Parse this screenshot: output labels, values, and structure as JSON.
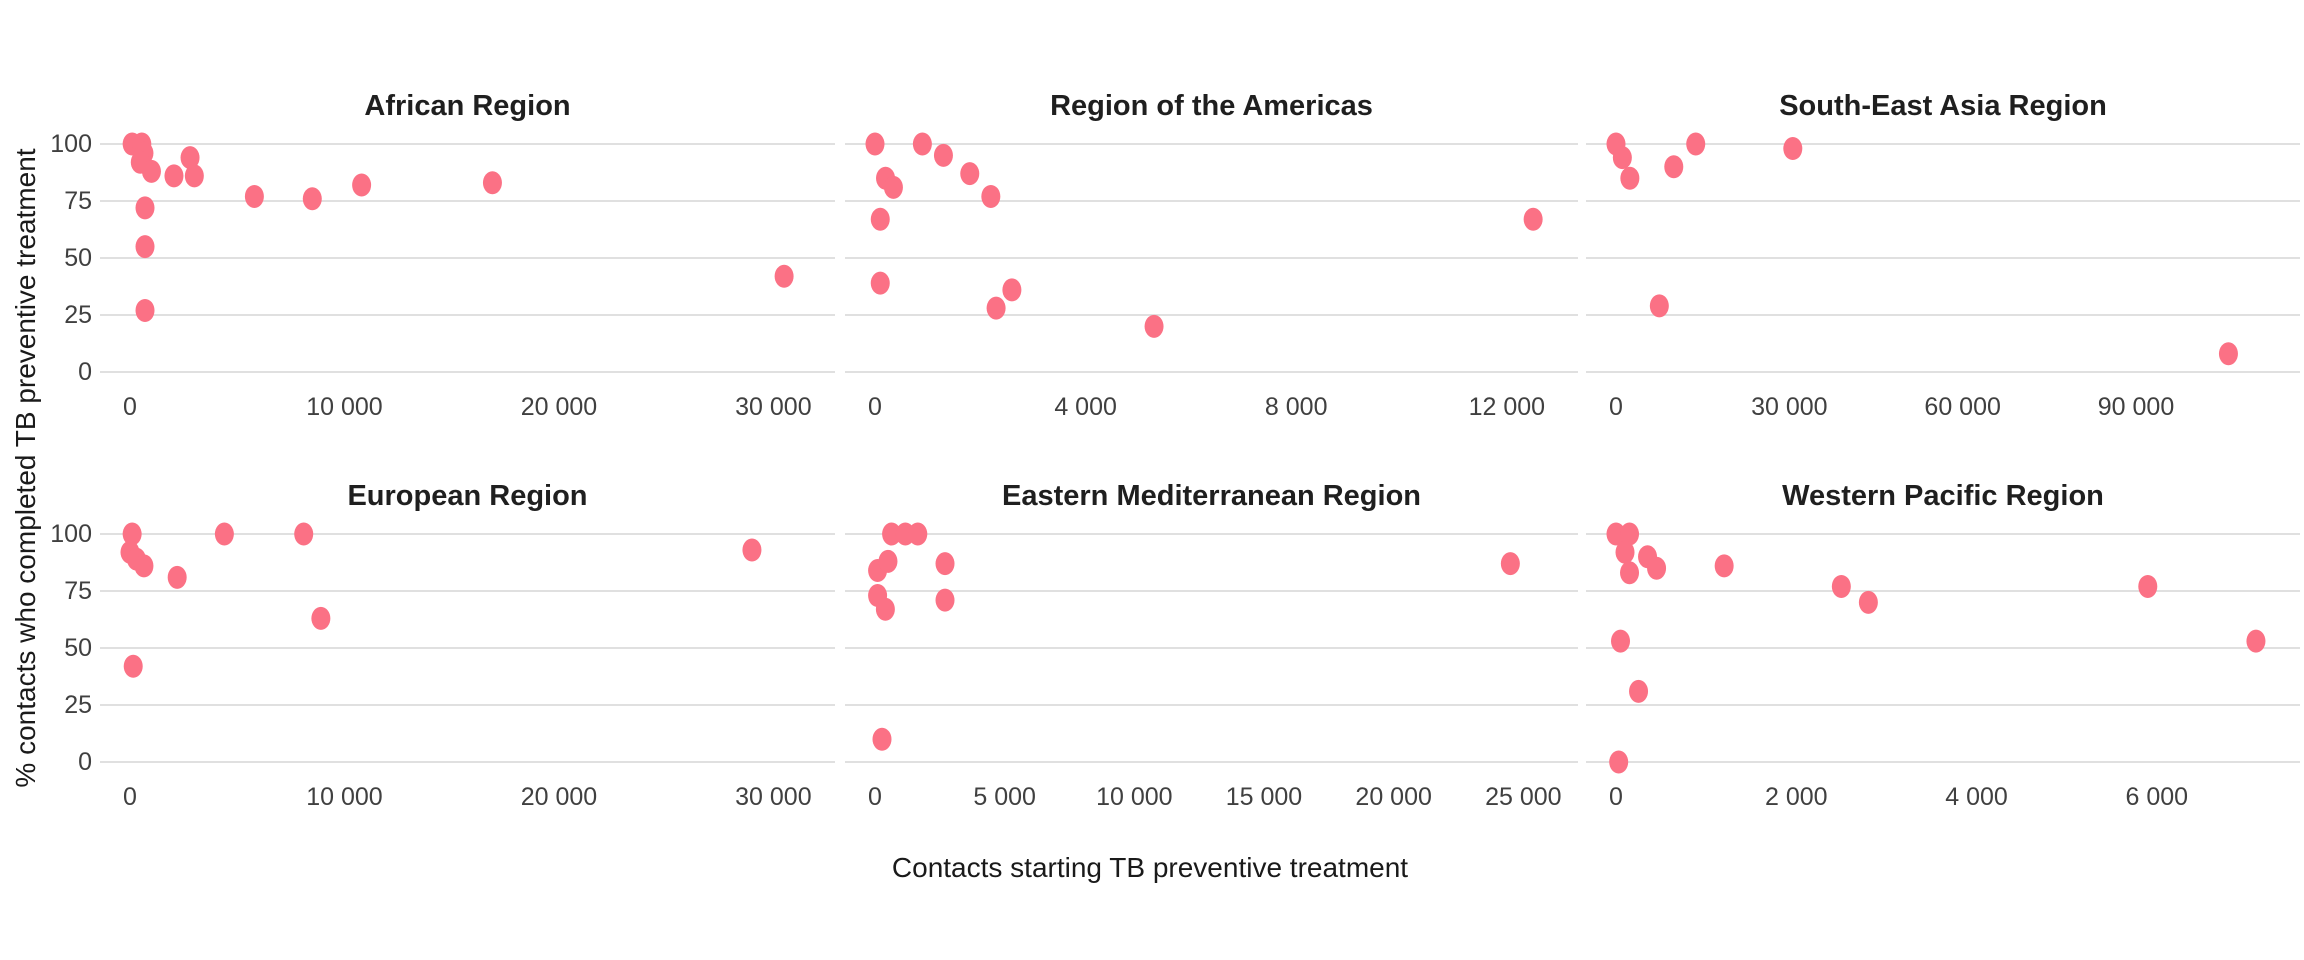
{
  "chart_data": {
    "type": "scatter",
    "title": "",
    "xlabel": "Contacts starting TB preventive treatment",
    "ylabel": "% contacts who completed TB preventive treatment",
    "point_color": "#FB7185",
    "gridline_color": "#D6D6D6",
    "background": "#FFFFFF",
    "grid": "horizontal-only",
    "legend": "none",
    "y_axis": {
      "min": 0,
      "max": 100,
      "ticks": [
        100,
        75,
        50,
        25,
        0
      ]
    },
    "facets": [
      {
        "title": "African Region",
        "x_max": 32500,
        "x_ticks": [
          {
            "v": 0,
            "label": "0"
          },
          {
            "v": 10000,
            "label": "10 000"
          },
          {
            "v": 20000,
            "label": "20 000"
          },
          {
            "v": 30000,
            "label": "30 000"
          }
        ],
        "points": [
          [
            100,
            100
          ],
          [
            550,
            100
          ],
          [
            650,
            96
          ],
          [
            480,
            92
          ],
          [
            1000,
            88
          ],
          [
            2050,
            86
          ],
          [
            3000,
            86
          ],
          [
            2800,
            94
          ],
          [
            700,
            72
          ],
          [
            700,
            55
          ],
          [
            700,
            27
          ],
          [
            5800,
            77
          ],
          [
            8500,
            76
          ],
          [
            10800,
            82
          ],
          [
            16900,
            83
          ],
          [
            30500,
            42
          ]
        ]
      },
      {
        "title": "Region of the Americas",
        "x_max": 13200,
        "x_ticks": [
          {
            "v": 0,
            "label": "0"
          },
          {
            "v": 4000,
            "label": "4 000"
          },
          {
            "v": 8000,
            "label": "8 000"
          },
          {
            "v": 12000,
            "label": "12 000"
          }
        ],
        "points": [
          [
            0,
            100
          ],
          [
            900,
            100
          ],
          [
            1300,
            95
          ],
          [
            1800,
            87
          ],
          [
            2200,
            77
          ],
          [
            200,
            85
          ],
          [
            350,
            81
          ],
          [
            100,
            67
          ],
          [
            100,
            39
          ],
          [
            2300,
            28
          ],
          [
            2600,
            36
          ],
          [
            5300,
            20
          ],
          [
            12500,
            67
          ]
        ]
      },
      {
        "title": "South-East Asia Region",
        "x_max": 117000,
        "x_ticks": [
          {
            "v": 0,
            "label": "0"
          },
          {
            "v": 30000,
            "label": "30 000"
          },
          {
            "v": 60000,
            "label": "60 000"
          },
          {
            "v": 90000,
            "label": "90 000"
          }
        ],
        "points": [
          [
            0,
            100
          ],
          [
            1100,
            94
          ],
          [
            2400,
            85
          ],
          [
            10000,
            90
          ],
          [
            13800,
            100
          ],
          [
            30600,
            98
          ],
          [
            7500,
            29
          ],
          [
            106000,
            8
          ]
        ]
      },
      {
        "title": "European Region",
        "x_max": 32500,
        "x_ticks": [
          {
            "v": 0,
            "label": "0"
          },
          {
            "v": 10000,
            "label": "10 000"
          },
          {
            "v": 20000,
            "label": "20 000"
          },
          {
            "v": 30000,
            "label": "30 000"
          }
        ],
        "points": [
          [
            100,
            100
          ],
          [
            0,
            92
          ],
          [
            300,
            89
          ],
          [
            650,
            86
          ],
          [
            2200,
            81
          ],
          [
            4400,
            100
          ],
          [
            8100,
            100
          ],
          [
            8900,
            63
          ],
          [
            150,
            42
          ],
          [
            29000,
            93
          ]
        ]
      },
      {
        "title": "Eastern Mediterranean Region",
        "x_max": 26800,
        "x_ticks": [
          {
            "v": 0,
            "label": "0"
          },
          {
            "v": 5000,
            "label": "5 000"
          },
          {
            "v": 10000,
            "label": "10 000"
          },
          {
            "v": 15000,
            "label": "15 000"
          },
          {
            "v": 20000,
            "label": "20 000"
          },
          {
            "v": 25000,
            "label": "25 000"
          }
        ],
        "points": [
          [
            640,
            100
          ],
          [
            1170,
            100
          ],
          [
            1650,
            100
          ],
          [
            100,
            84
          ],
          [
            500,
            88
          ],
          [
            2700,
            87
          ],
          [
            100,
            73
          ],
          [
            400,
            67
          ],
          [
            2700,
            71
          ],
          [
            270,
            10
          ],
          [
            24500,
            87
          ]
        ]
      },
      {
        "title": "Western Pacific Region",
        "x_max": 7500,
        "x_ticks": [
          {
            "v": 0,
            "label": "0"
          },
          {
            "v": 2000,
            "label": "2 000"
          },
          {
            "v": 4000,
            "label": "4 000"
          },
          {
            "v": 6000,
            "label": "6 000"
          }
        ],
        "points": [
          [
            0,
            100
          ],
          [
            150,
            100
          ],
          [
            100,
            92
          ],
          [
            150,
            83
          ],
          [
            350,
            90
          ],
          [
            450,
            85
          ],
          [
            1200,
            86
          ],
          [
            2500,
            77
          ],
          [
            2800,
            70
          ],
          [
            5900,
            77
          ],
          [
            7100,
            53
          ],
          [
            50,
            53
          ],
          [
            250,
            31
          ],
          [
            30,
            0
          ]
        ]
      }
    ]
  }
}
